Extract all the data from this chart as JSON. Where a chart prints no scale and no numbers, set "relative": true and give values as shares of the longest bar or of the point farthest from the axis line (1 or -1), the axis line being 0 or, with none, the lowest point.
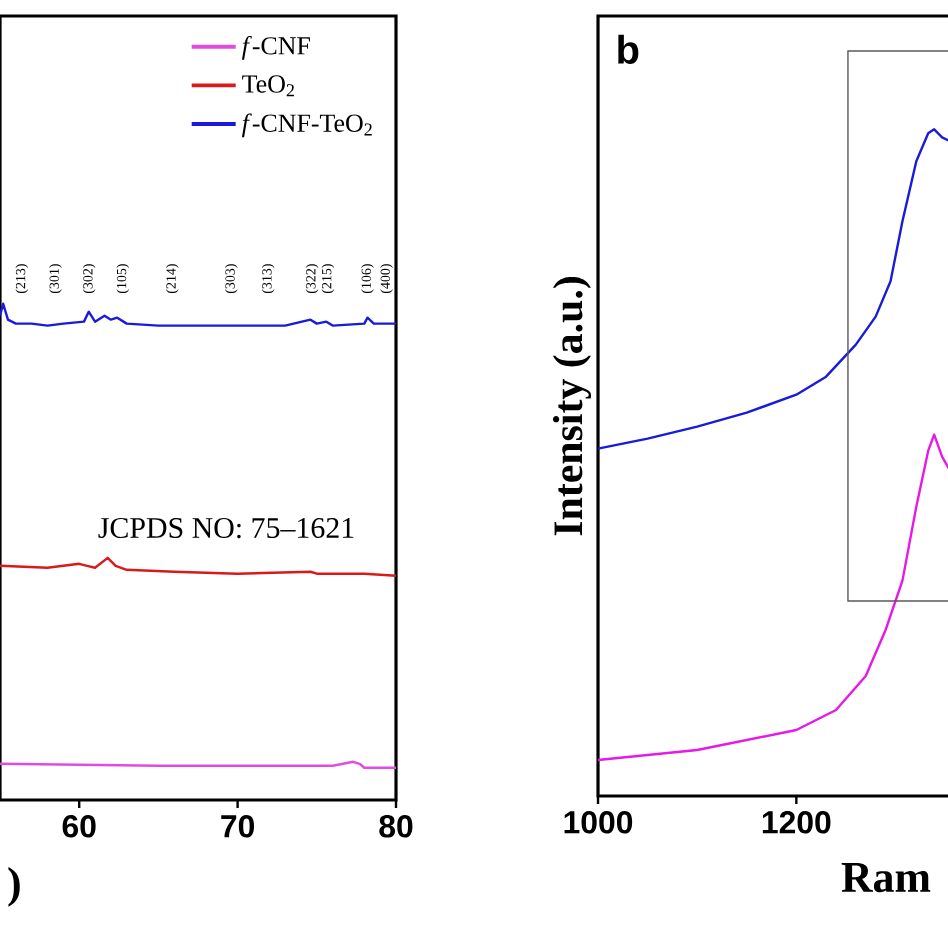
{
  "chart_data": [
    {
      "type": "line",
      "relative": true,
      "xlabel": ")",
      "xlim": [
        55,
        80
      ],
      "xticks": [
        60,
        70,
        80
      ],
      "tick_labels": "x",
      "legend": "top right",
      "annotations": [
        "JCPDS NO: 75–1621",
        "(213)",
        "(301)",
        "(302)",
        "(105)",
        "(214)",
        "(303)",
        "(313)",
        "(322)",
        "(215)",
        "(106)",
        "(400)"
      ],
      "series": [
        {
          "name": "*f*-CNF",
          "color": "#e04ce0",
          "x": [
            55,
            65,
            70,
            76,
            77.3,
            77.7,
            78,
            80
          ],
          "values": [
            0.073,
            0.069,
            0.069,
            0.069,
            0.077,
            0.073,
            0.065,
            0.065
          ]
        },
        {
          "name": "TeO$_{2}$",
          "color": "#d91a1a",
          "x": [
            55,
            58,
            59,
            60,
            60.5,
            61,
            61.8,
            62.3,
            63,
            66,
            70,
            74.6,
            75,
            78,
            80
          ],
          "values": [
            0.472,
            0.468,
            0.472,
            0.476,
            0.472,
            0.468,
            0.488,
            0.472,
            0.464,
            0.46,
            0.456,
            0.46,
            0.456,
            0.456,
            0.452
          ]
        },
        {
          "name": "*f*-CNF-TeO$_{2}$",
          "color": "#1a1ad9",
          "x": [
            55,
            55.2,
            55.5,
            56,
            57,
            58,
            59,
            60.3,
            60.6,
            61,
            61.6,
            62,
            62.4,
            63,
            65,
            67,
            70,
            73,
            74.6,
            75,
            75.6,
            76,
            78,
            78.2,
            78.6,
            80
          ],
          "values": [
            0.976,
            1.0,
            0.968,
            0.96,
            0.96,
            0.956,
            0.96,
            0.964,
            0.984,
            0.964,
            0.976,
            0.968,
            0.972,
            0.96,
            0.956,
            0.956,
            0.956,
            0.956,
            0.968,
            0.96,
            0.964,
            0.956,
            0.96,
            0.972,
            0.96,
            0.96
          ]
        }
      ]
    },
    {
      "type": "line",
      "relative": true,
      "title": "b",
      "xlabel": "Ram",
      "ylabel": "Intensity (a.u.)",
      "xlim": [
        1000,
        1355
      ],
      "xticks": [
        1000,
        1200
      ],
      "tick_labels": "x",
      "series": [
        {
          "color": "#1a1ad9",
          "x": [
            1000,
            1050,
            1100,
            1150,
            1200,
            1230,
            1260,
            1280,
            1295,
            1307,
            1321,
            1333,
            1339,
            1347,
            1355
          ],
          "values": [
            0.521,
            0.536,
            0.554,
            0.575,
            0.602,
            0.629,
            0.677,
            0.719,
            0.772,
            0.862,
            0.952,
            0.994,
            1.0,
            0.988,
            0.982
          ]
        },
        {
          "color": "#e619e6",
          "x": [
            1000,
            1100,
            1200,
            1240,
            1270,
            1290,
            1307,
            1321,
            1333,
            1339,
            1347,
            1355
          ],
          "values": [
            0.054,
            0.069,
            0.099,
            0.129,
            0.18,
            0.249,
            0.323,
            0.434,
            0.518,
            0.542,
            0.509,
            0.488
          ]
        }
      ]
    }
  ]
}
